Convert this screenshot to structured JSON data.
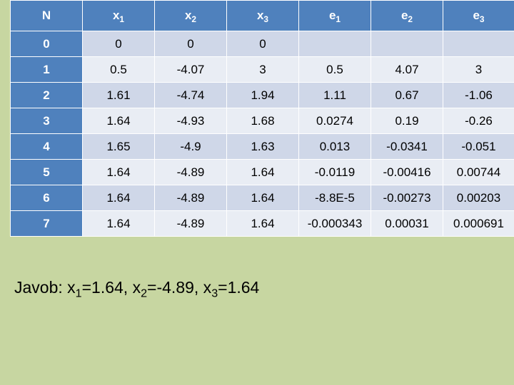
{
  "table": {
    "header": {
      "n": "N",
      "x_base": "x",
      "e_base": "e",
      "sub1": "1",
      "sub2": "2",
      "sub3": "3"
    },
    "rows": [
      [
        "0",
        "0",
        "0",
        "0",
        "",
        "",
        ""
      ],
      [
        "1",
        "0.5",
        "-4.07",
        "3",
        "0.5",
        "4.07",
        "3"
      ],
      [
        "2",
        "1.61",
        "-4.74",
        "1.94",
        "1.11",
        "0.67",
        "-1.06"
      ],
      [
        "3",
        "1.64",
        "-4.93",
        "1.68",
        "0.0274",
        "0.19",
        "-0.26"
      ],
      [
        "4",
        "1.65",
        "-4.9",
        "1.63",
        "0.013",
        "-0.0341",
        "-0.051"
      ],
      [
        "5",
        "1.64",
        "-4.89",
        "1.64",
        "-0.0119",
        "-0.00416",
        "0.00744"
      ],
      [
        "6",
        "1.64",
        "-4.89",
        "1.64",
        "-8.8E-5",
        "-0.00273",
        "0.00203"
      ],
      [
        "7",
        "1.64",
        "-4.89",
        "1.64",
        "-0.000343",
        "0.00031",
        "0.000691"
      ]
    ]
  },
  "answer": {
    "prefix": "Javob: x",
    "sub1": "1",
    "part1": "=1.64, x",
    "sub2": "2",
    "part2": "=-4.89, x",
    "sub3": "3",
    "part3": "=1.64"
  },
  "colors": {
    "background": "#c7d6a1",
    "header": "#4f81bd",
    "row_odd": "#cfd7e8",
    "row_even": "#e9edf4"
  }
}
